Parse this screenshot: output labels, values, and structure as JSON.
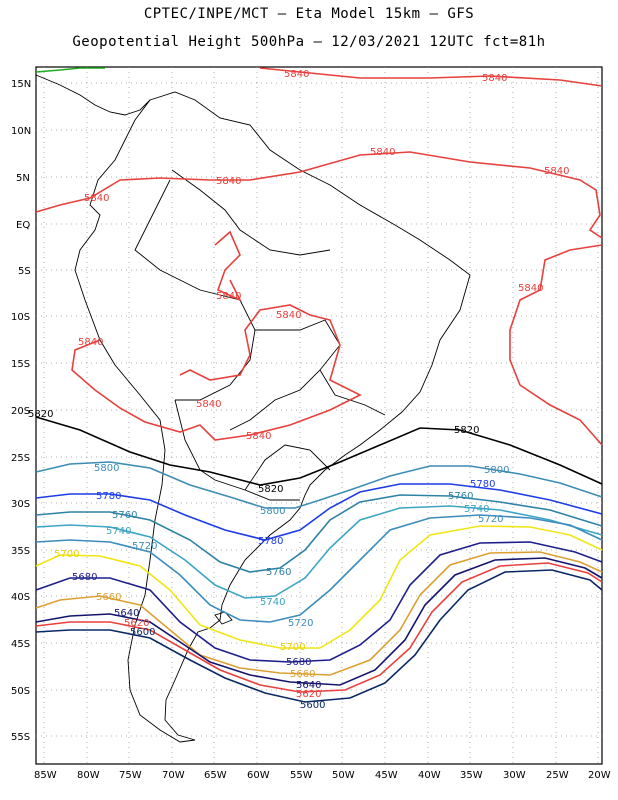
{
  "header": {
    "line1": "CPTEC/INPE/MCT —  Eta Model 15km — GFS",
    "line2": "Geopotential Height 500hPa — 12/03/2021 12UTC fct=81h"
  },
  "axes": {
    "lat_labels": [
      "15N",
      "10N",
      "5N",
      "EQ",
      "5S",
      "10S",
      "15S",
      "20S",
      "25S",
      "30S",
      "35S",
      "40S",
      "45S",
      "50S",
      "55S"
    ],
    "lon_labels": [
      "85W",
      "80W",
      "75W",
      "70W",
      "65W",
      "60W",
      "55W",
      "50W",
      "45W",
      "40W",
      "35W",
      "30W",
      "25W",
      "20W"
    ]
  },
  "colors": {
    "c5840": "#e8403c",
    "c5820": "#000000",
    "c5800": "#3c8cb4",
    "c5780": "#1e3ce6",
    "c5760": "#2d82a5",
    "c5740": "#3ca5c3",
    "c5720": "#3c8cbe",
    "c5700": "#f0e614",
    "c5680": "#1e1e8c",
    "c5660": "#dca032",
    "c5640": "#14146e",
    "c5620": "#e8403c",
    "c5600": "#0a2864"
  },
  "contour_labels": [
    {
      "text": "5840",
      "key": "c5840"
    },
    {
      "text": "5840",
      "key": "c5840"
    },
    {
      "text": "5840",
      "key": "c5840"
    },
    {
      "text": "5840",
      "key": "c5840"
    },
    {
      "text": "5840",
      "key": "c5840"
    },
    {
      "text": "5840",
      "key": "c5840"
    },
    {
      "text": "5840",
      "key": "c5840"
    },
    {
      "text": "5840",
      "key": "c5840"
    },
    {
      "text": "5840",
      "key": "c5840"
    },
    {
      "text": "5840",
      "key": "c5840"
    },
    {
      "text": "5840",
      "key": "c5840"
    },
    {
      "text": "5840",
      "key": "c5840"
    },
    {
      "text": "5820",
      "key": "c5820"
    },
    {
      "text": "5820",
      "key": "c5820"
    },
    {
      "text": "5820",
      "key": "c5820"
    },
    {
      "text": "5800",
      "key": "c5800"
    },
    {
      "text": "5800",
      "key": "c5800"
    },
    {
      "text": "5800",
      "key": "c5800"
    },
    {
      "text": "5780",
      "key": "c5780"
    },
    {
      "text": "5780",
      "key": "c5780"
    },
    {
      "text": "5780",
      "key": "c5780"
    },
    {
      "text": "5760",
      "key": "c5760"
    },
    {
      "text": "5760",
      "key": "c5760"
    },
    {
      "text": "5760",
      "key": "c5760"
    },
    {
      "text": "5740",
      "key": "c5740"
    },
    {
      "text": "5740",
      "key": "c5740"
    },
    {
      "text": "5740",
      "key": "c5740"
    },
    {
      "text": "5720",
      "key": "c5720"
    },
    {
      "text": "5720",
      "key": "c5720"
    },
    {
      "text": "5720",
      "key": "c5720"
    },
    {
      "text": "5700",
      "key": "c5700"
    },
    {
      "text": "5700",
      "key": "c5700"
    },
    {
      "text": "5680",
      "key": "c5680"
    },
    {
      "text": "5680",
      "key": "c5680"
    },
    {
      "text": "5660",
      "key": "c5660"
    },
    {
      "text": "5660",
      "key": "c5660"
    },
    {
      "text": "5640",
      "key": "c5640"
    },
    {
      "text": "5640",
      "key": "c5640"
    },
    {
      "text": "5620",
      "key": "c5620"
    },
    {
      "text": "5620",
      "key": "c5620"
    },
    {
      "text": "5600",
      "key": "c5600"
    },
    {
      "text": "5600",
      "key": "c5600"
    }
  ]
}
